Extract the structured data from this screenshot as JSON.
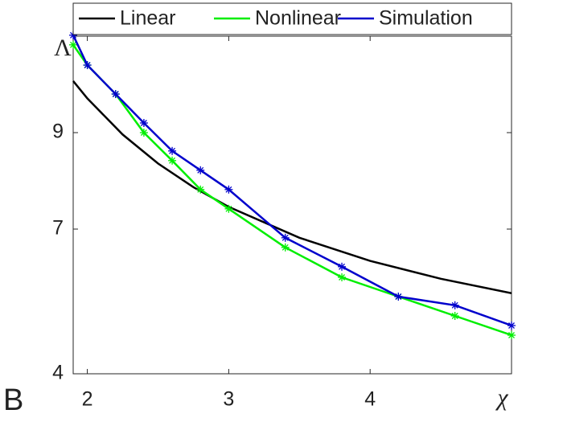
{
  "chart_data": {
    "type": "line",
    "panel_label": "B",
    "xlabel": "χ",
    "ylabel": "Λ",
    "xlim": [
      1.9,
      5
    ],
    "xticks": [
      2,
      3,
      4
    ],
    "ylim": [
      4,
      11
    ],
    "yticks": [
      4,
      7,
      9
    ],
    "legend": "top",
    "series": [
      {
        "name": "Linear",
        "color": "#000000",
        "markers": false,
        "x": [
          1.9,
          2,
          2.25,
          2.5,
          2.75,
          3,
          3.5,
          4,
          4.5,
          5
        ],
        "values": [
          10.07,
          9.71,
          8.96,
          8.36,
          7.87,
          7.46,
          6.82,
          6.34,
          5.97,
          5.67
        ]
      },
      {
        "name": "Nonlinear",
        "color": "#00ee00",
        "markers": true,
        "x": [
          1.9,
          2.0,
          2.2,
          2.4,
          2.6,
          2.8,
          3.0,
          3.4,
          3.8,
          4.2,
          4.6,
          5.0
        ],
        "values": [
          10.82,
          10.4,
          9.8,
          9.0,
          8.42,
          7.82,
          7.42,
          6.62,
          6.0,
          5.6,
          5.2,
          4.8
        ]
      },
      {
        "name": "Simulation",
        "color": "#0000cc",
        "markers": true,
        "x": [
          1.9,
          2.0,
          2.2,
          2.4,
          2.6,
          2.8,
          3.0,
          3.4,
          3.8,
          4.2,
          4.6,
          5.0
        ],
        "values": [
          11.02,
          10.4,
          9.8,
          9.2,
          8.62,
          8.22,
          7.82,
          6.82,
          6.22,
          5.6,
          5.42,
          5.0
        ]
      }
    ]
  }
}
